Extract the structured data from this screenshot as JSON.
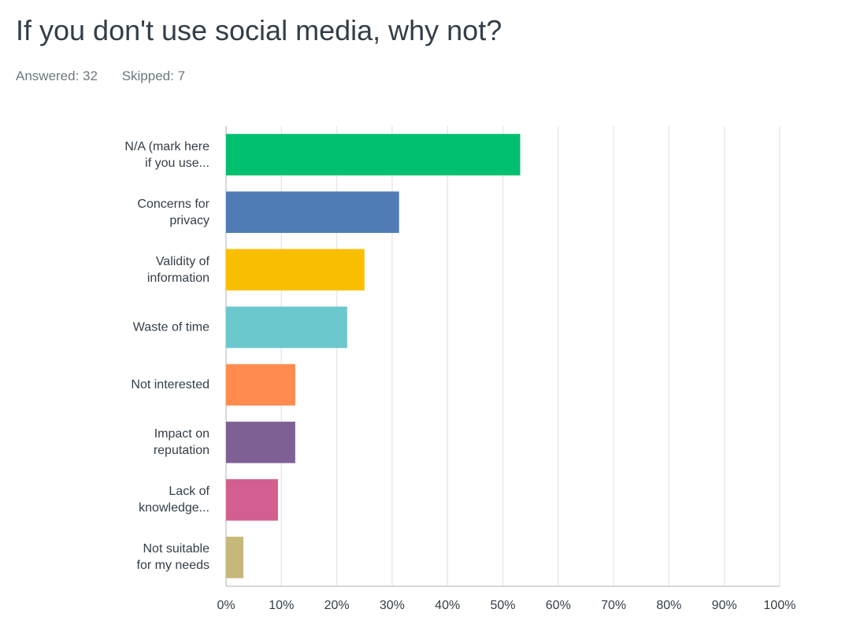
{
  "chart_data": {
    "type": "barh",
    "title": "If you don't use social media, why not?",
    "answered": "Answered: 32",
    "skipped": "Skipped: 7",
    "categories": [
      "N/A (mark here\nif you use...",
      "Concerns for\nprivacy",
      "Validity of\ninformation",
      "Waste of time",
      "Not interested",
      "Impact on\nreputation",
      "Lack of\nknowledge...",
      "Not suitable\nfor my needs"
    ],
    "values": [
      53.13,
      31.25,
      25,
      21.88,
      12.5,
      12.5,
      9.38,
      3.13
    ],
    "colors": [
      "#00bf6f",
      "#507cb6",
      "#f9be00",
      "#6bc8cd",
      "#ff8b4f",
      "#7f6095",
      "#d25f90",
      "#c7b879"
    ],
    "xlim": [
      0,
      100
    ],
    "xticks": [
      {
        "value": 0,
        "label": "0%"
      },
      {
        "value": 10,
        "label": "10%"
      },
      {
        "value": 20,
        "label": "20%"
      },
      {
        "value": 30,
        "label": "30%"
      },
      {
        "value": 40,
        "label": "40%"
      },
      {
        "value": 50,
        "label": "50%"
      },
      {
        "value": 60,
        "label": "60%"
      },
      {
        "value": 70,
        "label": "70%"
      },
      {
        "value": 80,
        "label": "80%"
      },
      {
        "value": 90,
        "label": "90%"
      },
      {
        "value": 100,
        "label": "100%"
      }
    ],
    "grid": true
  }
}
